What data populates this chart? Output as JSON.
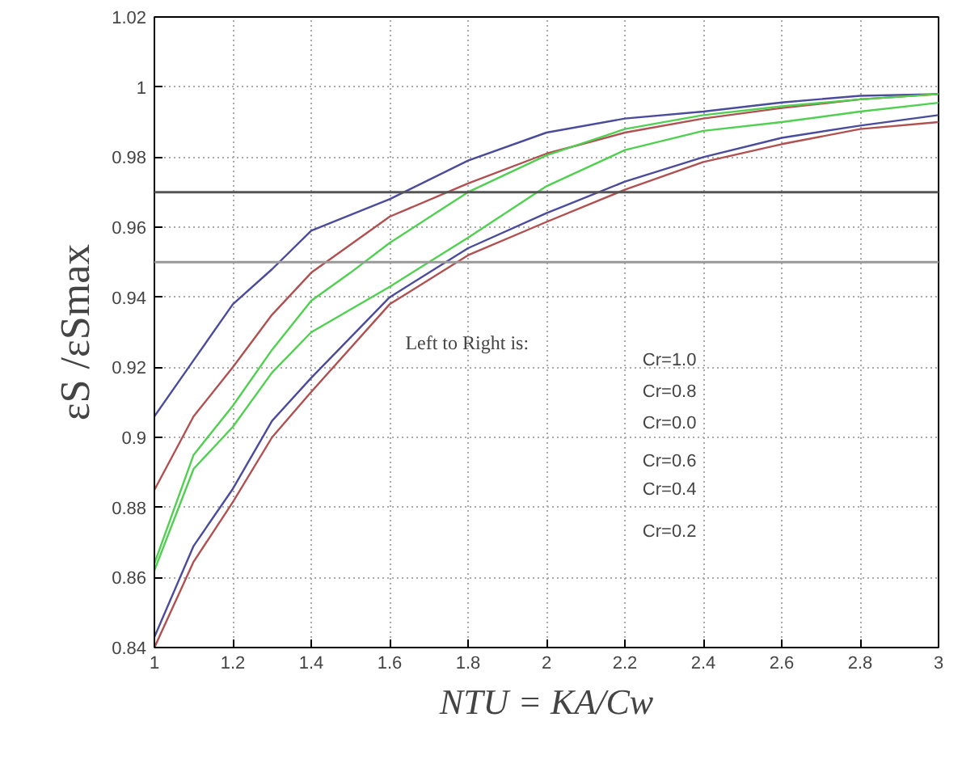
{
  "chart_data": {
    "type": "line",
    "xlabel": "NTU = KA/Cw",
    "ylabel": "εS /εSmax",
    "xlim": [
      1,
      3
    ],
    "ylim": [
      0.84,
      1.02
    ],
    "xticks": [
      1,
      1.2,
      1.4,
      1.6,
      1.8,
      2,
      2.2,
      2.4,
      2.6,
      2.8,
      3
    ],
    "yticks": [
      0.84,
      0.86,
      0.88,
      0.9,
      0.92,
      0.94,
      0.96,
      0.98,
      1,
      1.02
    ],
    "grid": true,
    "line_style": "solid",
    "marker": "none",
    "series": [
      {
        "color": "#4b4b9b",
        "x": [
          1,
          1.1,
          1.2,
          1.3,
          1.4,
          1.6,
          1.8,
          2,
          2.2,
          2.4,
          2.6,
          2.8,
          3
        ],
        "values": [
          0.906,
          0.922,
          0.938,
          0.948,
          0.959,
          0.968,
          0.979,
          0.987,
          0.991,
          0.993,
          0.9956,
          0.9975,
          0.998
        ]
      },
      {
        "color": "#b05050",
        "x": [
          1,
          1.1,
          1.2,
          1.3,
          1.4,
          1.6,
          1.8,
          2,
          2.2,
          2.4,
          2.6,
          2.8,
          3
        ],
        "values": [
          0.885,
          0.906,
          0.92,
          0.935,
          0.947,
          0.963,
          0.9725,
          0.981,
          0.987,
          0.991,
          0.994,
          0.9965,
          0.998
        ]
      },
      {
        "color": "#50d050",
        "x": [
          1,
          1.1,
          1.2,
          1.3,
          1.4,
          1.5,
          1.6,
          1.8,
          2,
          2.2,
          2.4,
          2.6,
          2.8,
          3
        ],
        "values": [
          0.864,
          0.895,
          0.909,
          0.925,
          0.939,
          0.947,
          0.9555,
          0.97,
          0.9805,
          0.988,
          0.992,
          0.9945,
          0.9965,
          0.998
        ]
      },
      {
        "color": "#50d050",
        "x": [
          1,
          1.1,
          1.2,
          1.3,
          1.4,
          1.6,
          1.8,
          2,
          2.2,
          2.4,
          2.6,
          2.8,
          3
        ],
        "values": [
          0.862,
          0.891,
          0.903,
          0.9185,
          0.93,
          0.943,
          0.957,
          0.9717,
          0.982,
          0.9875,
          0.99,
          0.993,
          0.9955
        ]
      },
      {
        "color": "#4b4b9b",
        "x": [
          1,
          1.1,
          1.2,
          1.3,
          1.4,
          1.6,
          1.8,
          2,
          2.2,
          2.4,
          2.6,
          2.8,
          3
        ],
        "values": [
          0.843,
          0.869,
          0.8853,
          0.9047,
          0.917,
          0.94,
          0.954,
          0.964,
          0.973,
          0.98,
          0.9855,
          0.989,
          0.992
        ]
      },
      {
        "color": "#b05050",
        "x": [
          1,
          1.1,
          1.2,
          1.3,
          1.4,
          1.6,
          1.8,
          2,
          2.2,
          2.4,
          2.6,
          2.8,
          3
        ],
        "values": [
          0.84,
          0.8645,
          0.8815,
          0.9,
          0.913,
          0.938,
          0.952,
          0.9615,
          0.9707,
          0.9786,
          0.9837,
          0.988,
          0.99
        ]
      }
    ],
    "ref_lines": [
      {
        "axis": "y",
        "value": 0.97,
        "color": "#555555"
      },
      {
        "axis": "y",
        "value": 0.95,
        "color": "#999999"
      }
    ],
    "annotations": [
      "Left to Right is:",
      "Cr=1.0",
      "Cr=0.8",
      "Cr=0.0",
      "Cr=0.6",
      "Cr=0.4",
      "Cr=0.2"
    ]
  }
}
